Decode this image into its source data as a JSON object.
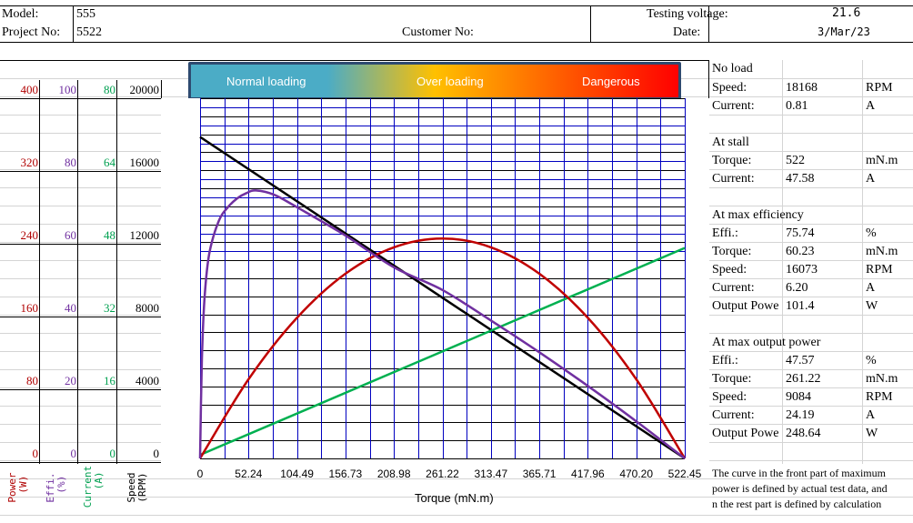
{
  "header": {
    "model_label": "Model:",
    "model_value": "555",
    "project_label": "Project No:",
    "project_value": "5522",
    "customer_label": "Customer No:",
    "voltage_label": "Testing voltage:",
    "voltage_value": "21.6",
    "date_label": "Date:",
    "date_value": "3/Mar/23"
  },
  "banner": {
    "normal": "Normal loading",
    "over": "Over loading",
    "danger": "Dangerous",
    "colors": [
      "#4bacc6",
      "#ffc000",
      "#ff0000"
    ]
  },
  "axes": {
    "power": [
      "400",
      "320",
      "240",
      "160",
      "80",
      "0"
    ],
    "effi": [
      "100",
      "80",
      "60",
      "40",
      "20",
      "0"
    ],
    "current": [
      "80",
      "64",
      "48",
      "32",
      "16",
      "0"
    ],
    "speed": [
      "20000",
      "16000",
      "12000",
      "8000",
      "4000",
      "0"
    ],
    "power_label": "Power\n (W)",
    "effi_label": "Effi.\n (%)",
    "current_label": "Current\n  (A)",
    "speed_label": "Speed\n(RPM)"
  },
  "panel": {
    "noload_title": "No load",
    "noload_speed_label": "Speed:",
    "noload_speed": "18168",
    "noload_speed_unit": "RPM",
    "noload_current_label": "Current:",
    "noload_current": "0.81",
    "noload_current_unit": "A",
    "stall_title": "At stall",
    "stall_torque_label": "Torque:",
    "stall_torque": "522",
    "stall_torque_unit": "mN.m",
    "stall_current_label": "Current:",
    "stall_current": "47.58",
    "stall_current_unit": "A",
    "maxeff_title": "At max efficiency",
    "maxeff_eff_label": "Effi.:",
    "maxeff_eff": "75.74",
    "maxeff_eff_unit": "%",
    "maxeff_torque_label": "Torque:",
    "maxeff_torque": "60.23",
    "maxeff_torque_unit": "mN.m",
    "maxeff_speed_label": "Speed:",
    "maxeff_speed": "16073",
    "maxeff_speed_unit": "RPM",
    "maxeff_current_label": "Current:",
    "maxeff_current": "6.20",
    "maxeff_current_unit": "A",
    "maxeff_output_label": "Output Powe",
    "maxeff_output": "101.4",
    "maxeff_output_unit": "W",
    "maxout_title": "At max output power",
    "maxout_eff_label": "Effi.:",
    "maxout_eff": "47.57",
    "maxout_eff_unit": "%",
    "maxout_torque_label": "Torque:",
    "maxout_torque": "261.22",
    "maxout_torque_unit": "mN.m",
    "maxout_speed_label": "Speed:",
    "maxout_speed": "9084",
    "maxout_speed_unit": "RPM",
    "maxout_current_label": "Current:",
    "maxout_current": "24.19",
    "maxout_current_unit": "A",
    "maxout_output_label": "Output Powe",
    "maxout_output": "248.64",
    "maxout_output_unit": "W"
  },
  "note": {
    "line1": "The curve in the front part of maximum",
    "line2": "power is defined by actual test data, and",
    "line3": "n the rest part is defined by calculation"
  },
  "chart_data": {
    "type": "line",
    "xlabel": "Torque (mN.m)",
    "x_ticks": [
      "0",
      "52.24",
      "104.49",
      "156.73",
      "208.98",
      "261.22",
      "313.47",
      "365.71",
      "417.96",
      "470.20",
      "522.45"
    ],
    "xlim": [
      0,
      522.45
    ],
    "grid": true,
    "series": [
      {
        "quantity": "speed",
        "color": "#000000",
        "unit": "RPM",
        "ylim": [
          0,
          20000
        ],
        "x": [
          0,
          522.45
        ],
        "y": [
          18168,
          0
        ]
      },
      {
        "quantity": "current",
        "color": "#00b050",
        "unit": "A",
        "ylim": [
          0,
          80
        ],
        "x": [
          0,
          522.45
        ],
        "y": [
          0.81,
          47.58
        ]
      },
      {
        "quantity": "power",
        "color": "#c00000",
        "unit": "W",
        "ylim": [
          0,
          400
        ],
        "x": [
          0,
          52.24,
          104.49,
          156.73,
          208.98,
          261.22,
          313.47,
          365.71,
          417.96,
          470.2,
          522.45
        ],
        "y": [
          0,
          89.5,
          159,
          208.8,
          238.7,
          248.6,
          238.7,
          208.8,
          159,
          89.5,
          0
        ]
      },
      {
        "quantity": "efficiency",
        "color": "#7030a0",
        "unit": "%",
        "ylim": [
          0,
          100
        ],
        "x": [
          0,
          2,
          5,
          10,
          20,
          30,
          40,
          50,
          60.23,
          80,
          104.49,
          156.73,
          208.98,
          261.22,
          313.47,
          365.71,
          417.96,
          470.2,
          522.45
        ],
        "y": [
          0,
          28,
          46,
          58,
          67,
          71,
          73.5,
          75,
          75.74,
          74.5,
          71,
          63,
          54,
          47.6,
          39,
          30,
          20.5,
          10.5,
          0
        ]
      }
    ]
  }
}
